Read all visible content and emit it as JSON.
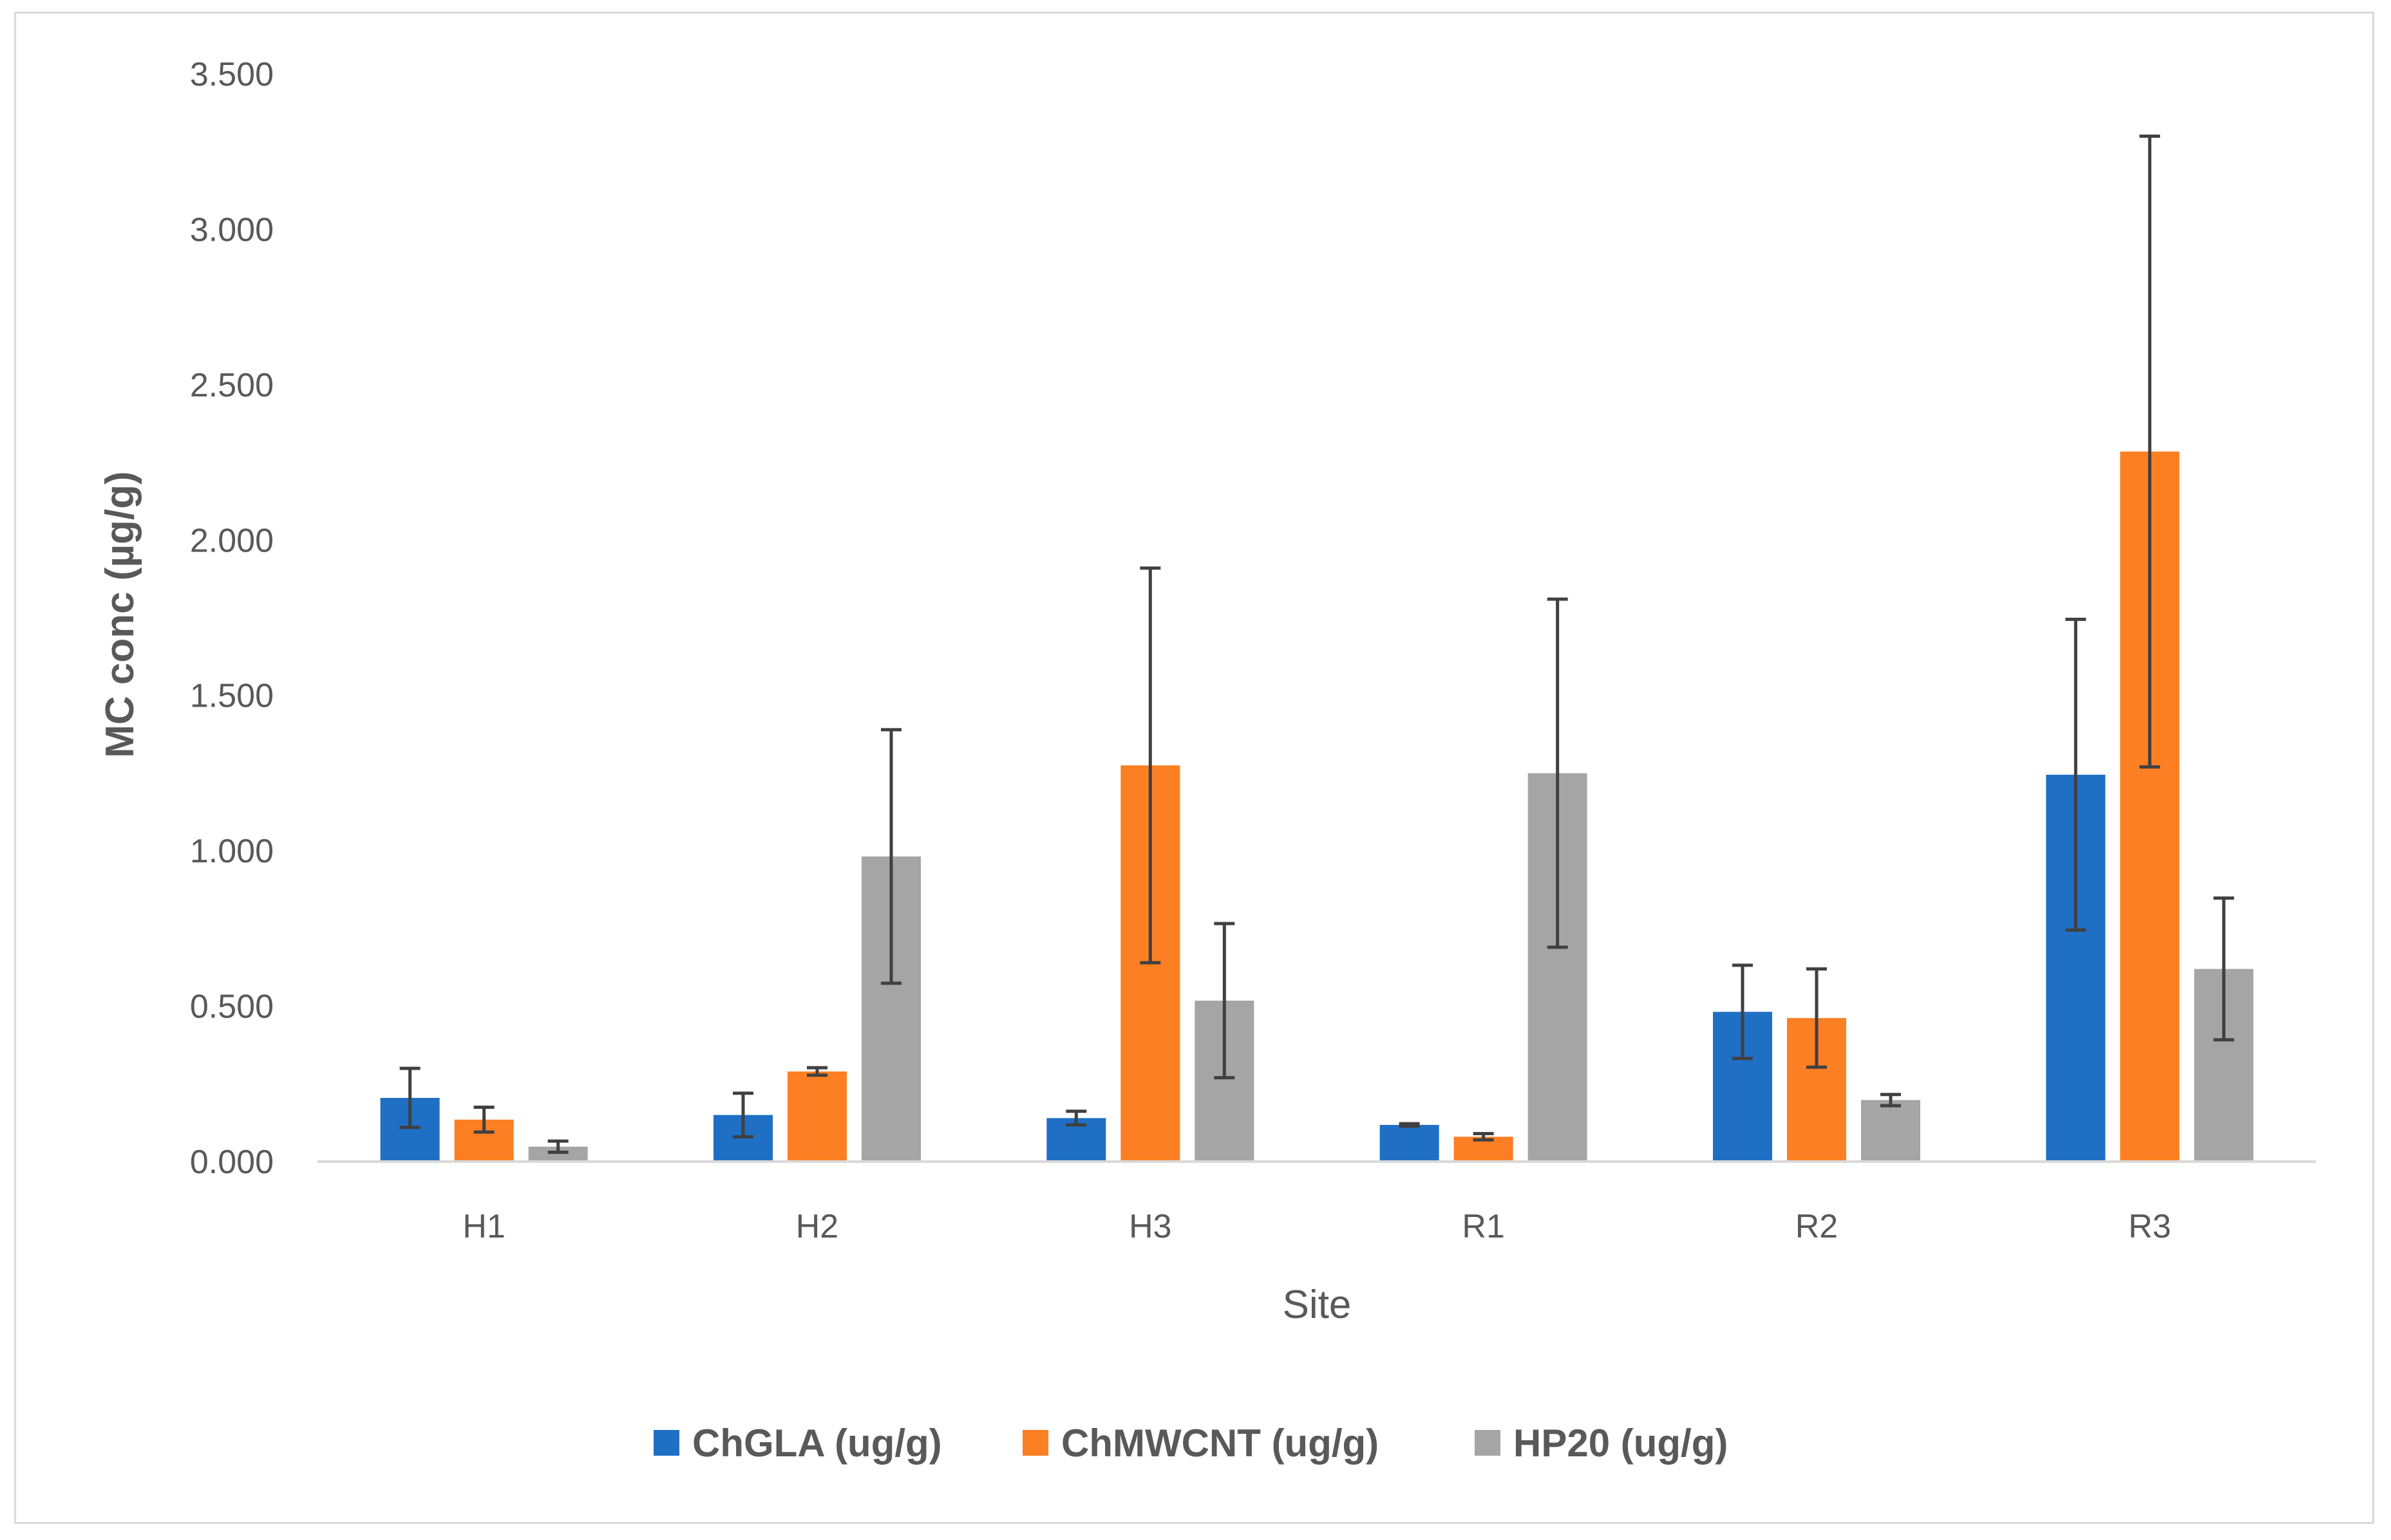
{
  "chart_data": {
    "type": "bar",
    "title": "",
    "xlabel": "Site",
    "ylabel": "MC conc (µg/g)",
    "categories": [
      "H1",
      "H2",
      "H3",
      "R1",
      "R2",
      "R3"
    ],
    "ylim": [
      0,
      3.5
    ],
    "yticks": [
      "0.000",
      "0.500",
      "1.000",
      "1.500",
      "2.000",
      "2.500",
      "3.000",
      "3.500"
    ],
    "ytick_values": [
      0,
      0.5,
      1.0,
      1.5,
      2.0,
      2.5,
      3.0,
      3.5
    ],
    "grid": false,
    "legend_position": "bottom",
    "series": [
      {
        "name": "ChGLA (ug/g)",
        "color": "#1f6fc5",
        "values": [
          0.205,
          0.15,
          0.14,
          0.118,
          0.482,
          1.245
        ],
        "error": [
          0.095,
          0.07,
          0.022,
          0.004,
          0.15,
          0.5
        ]
      },
      {
        "name": "ChMWCNT (ug/g)",
        "color": "#fd7f23",
        "values": [
          0.135,
          0.29,
          1.275,
          0.08,
          0.462,
          2.285
        ],
        "error": [
          0.04,
          0.012,
          0.635,
          0.01,
          0.158,
          1.015
        ]
      },
      {
        "name": "HP20 (ug/g)",
        "color": "#a5a5a5",
        "values": [
          0.048,
          0.982,
          0.518,
          1.25,
          0.198,
          0.62
        ],
        "error": [
          0.018,
          0.408,
          0.248,
          0.56,
          0.018,
          0.228
        ]
      }
    ]
  }
}
